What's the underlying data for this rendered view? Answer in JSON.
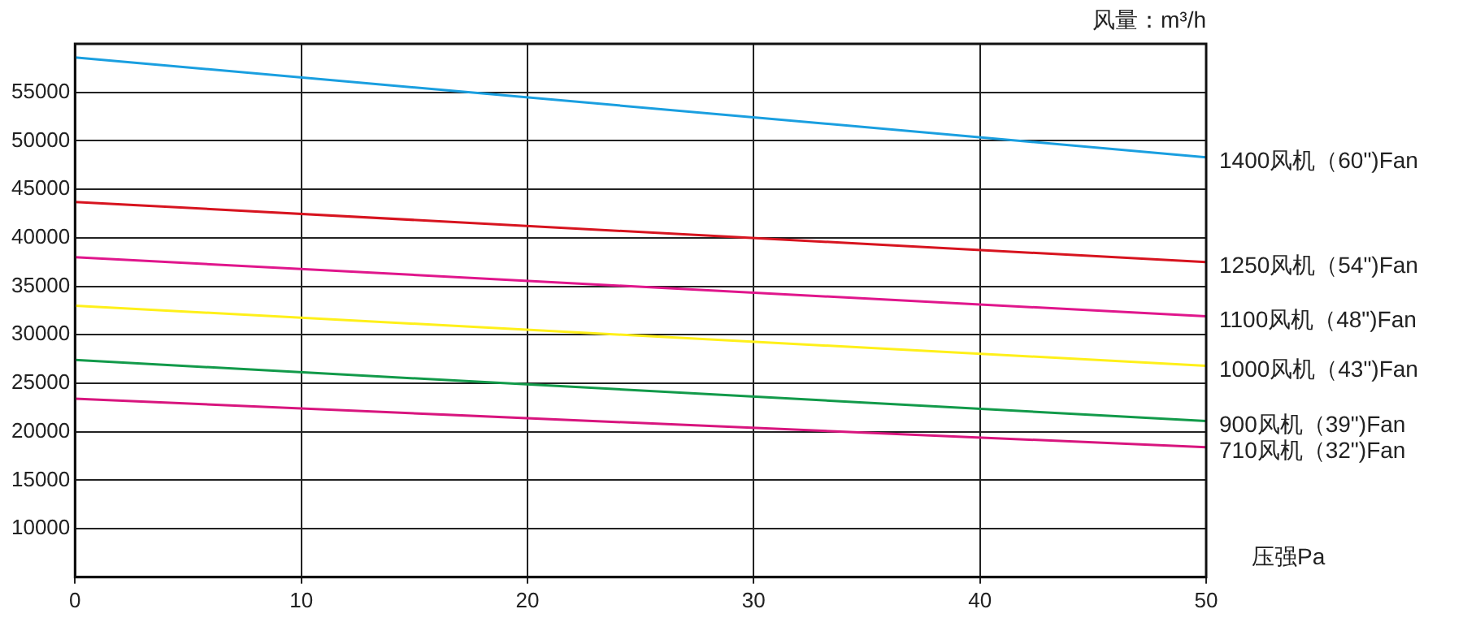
{
  "chart_data": {
    "type": "line",
    "xlabel": "压强Pa",
    "ylabel": "风量：m³/h",
    "x": [
      0,
      50
    ],
    "xlim": [
      0,
      50
    ],
    "xticks": [
      0,
      10,
      20,
      30,
      40,
      50
    ],
    "ylim": [
      5000,
      60000
    ],
    "yticks": [
      10000,
      15000,
      20000,
      25000,
      30000,
      35000,
      40000,
      45000,
      50000,
      55000
    ],
    "grid": true,
    "legend": false,
    "marker": "none",
    "line_style": "solid",
    "series": [
      {
        "name": "1400风机（60\")Fan",
        "color": "#1a9fe0",
        "values": [
          58600,
          48300
        ]
      },
      {
        "name": "1250风机（54\")Fan",
        "color": "#d7141f",
        "values": [
          43700,
          37500
        ]
      },
      {
        "name": "1100风机（48\")Fan",
        "color": "#e0168c",
        "values": [
          38000,
          31900
        ]
      },
      {
        "name": "1000风机（43\")Fan",
        "color": "#fff01a",
        "values": [
          33000,
          26800
        ]
      },
      {
        "name": "900风机（39\")Fan",
        "color": "#129a4a",
        "values": [
          27400,
          21100
        ]
      },
      {
        "name": "710风机（32\")Fan",
        "color": "#d8157e",
        "values": [
          23400,
          18400
        ]
      }
    ]
  }
}
